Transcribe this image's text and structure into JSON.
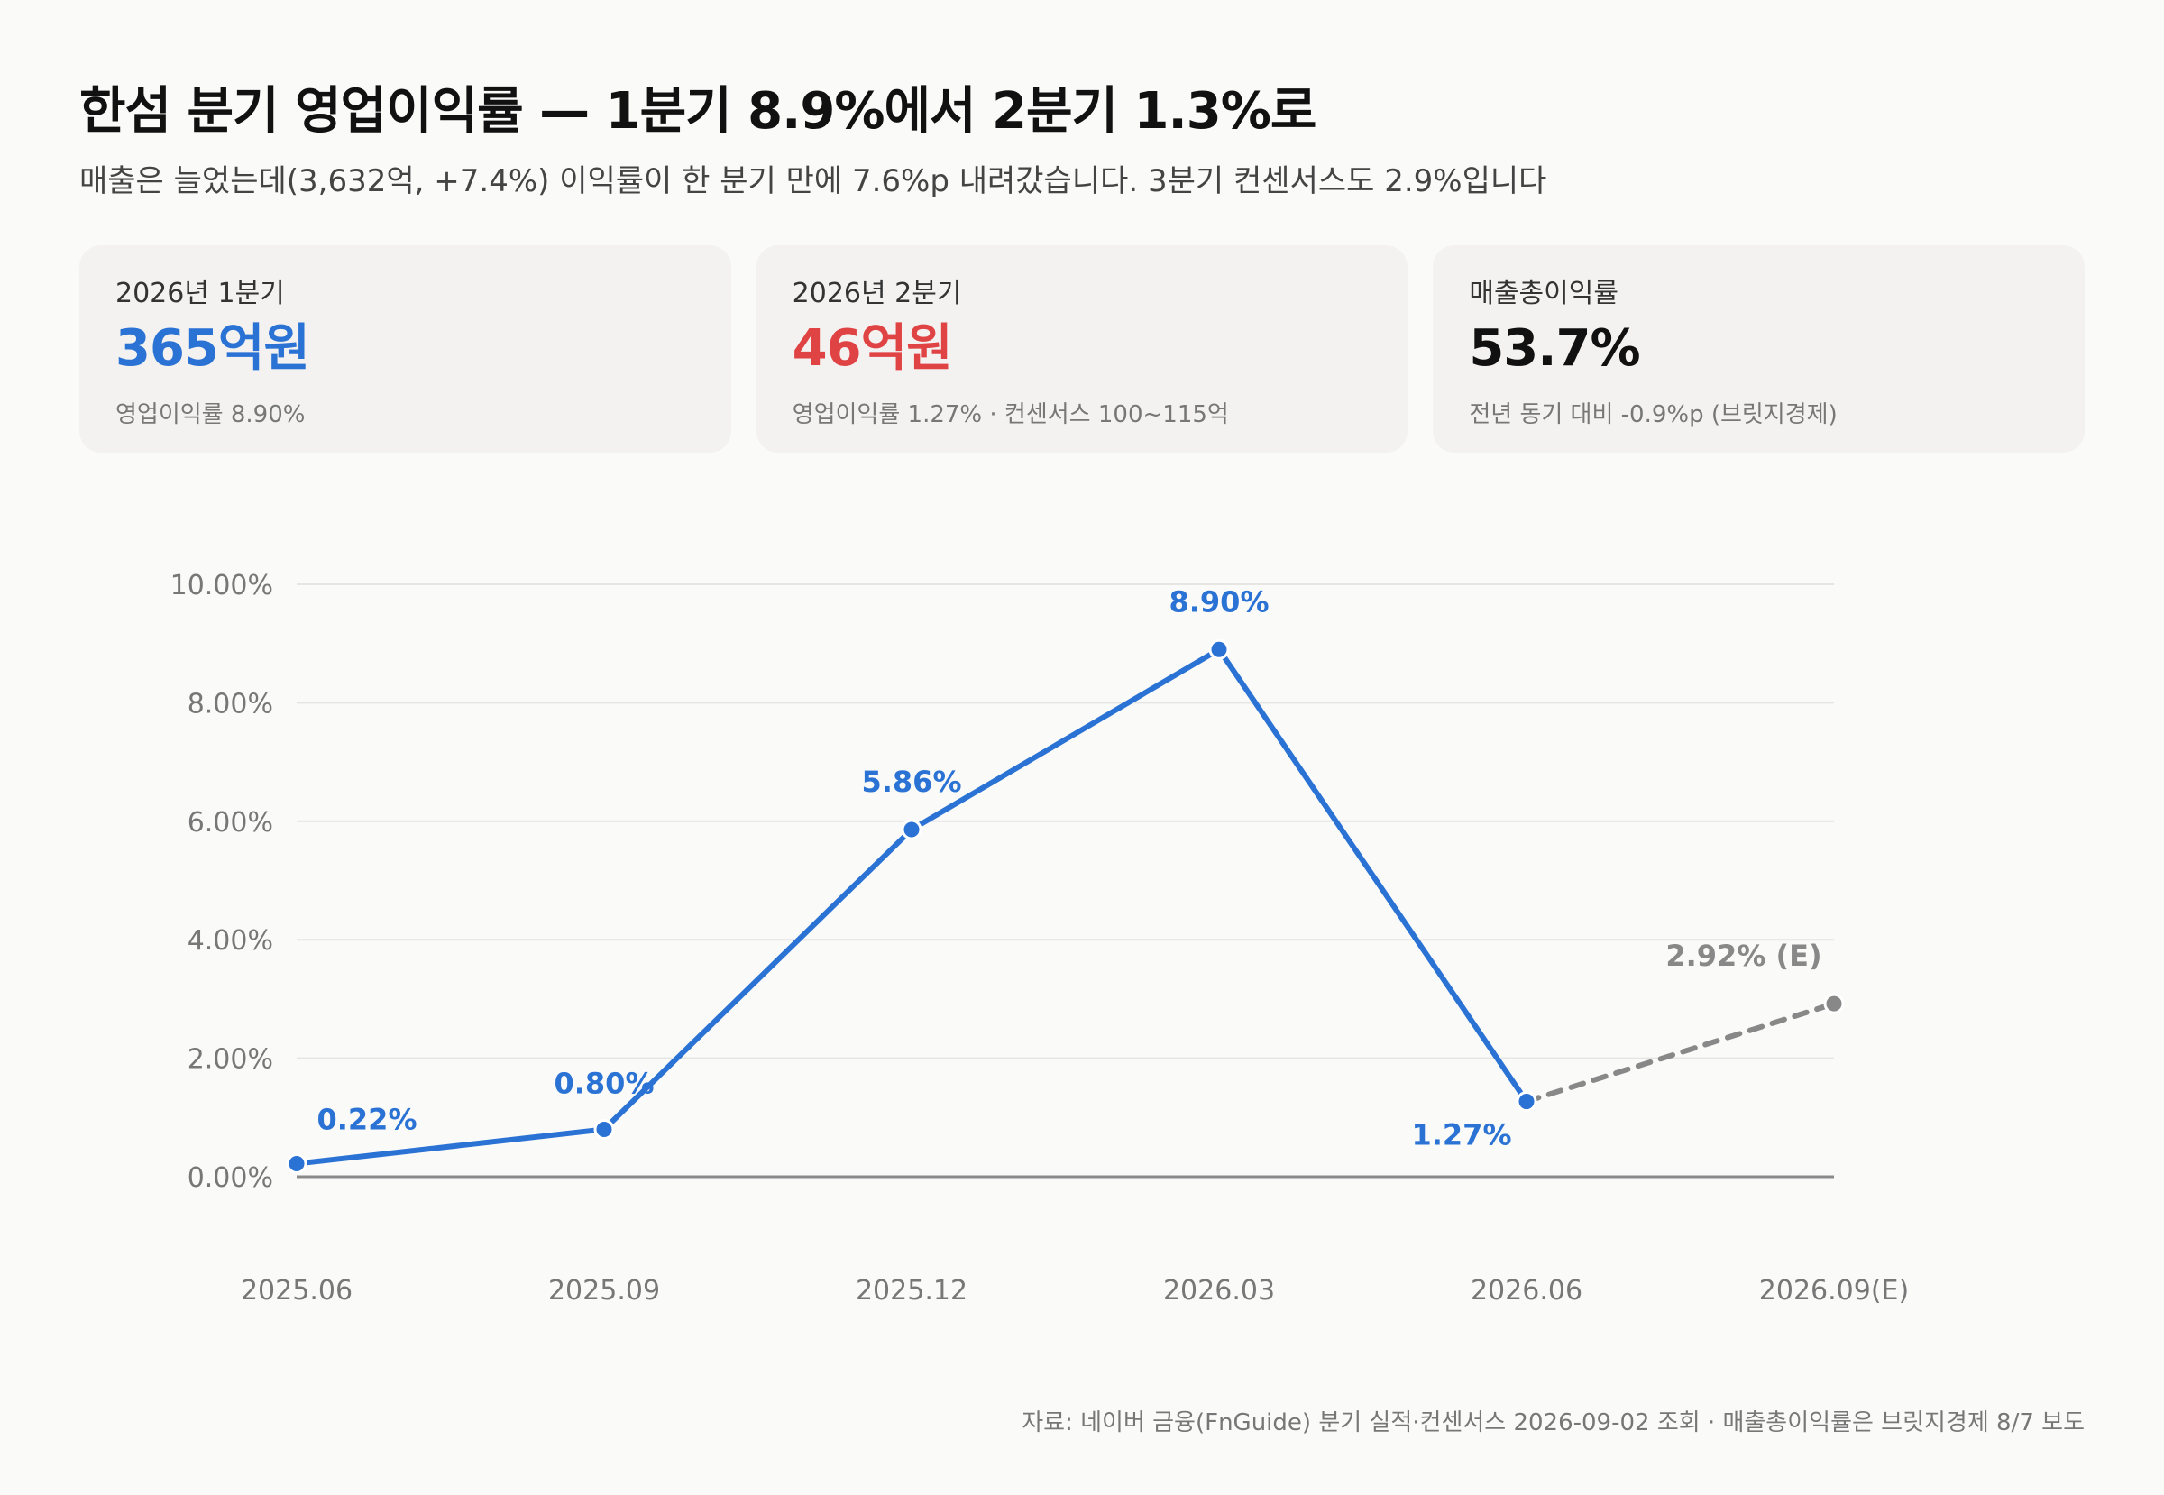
{
  "header": {
    "title": "한섬 분기 영업이익률 — 1분기 8.9%에서 2분기 1.3%로",
    "subtitle": "매출은 늘었는데(3,632억, +7.4%) 이익률이 한 분기 만에 7.6%p 내려갔습니다. 3분기 컨센서스도 2.9%입니다"
  },
  "cards": [
    {
      "label": "2026년 1분기",
      "value": "365억원",
      "note": "영업이익률 8.90%",
      "color": "#2a72d4"
    },
    {
      "label": "2026년 2분기",
      "value": "46억원",
      "note": "영업이익률 1.27% · 컨센서스 100~115억",
      "color": "#e04343"
    },
    {
      "label": "매출총이익률",
      "value": "53.7%",
      "note": "전년 동기 대비 -0.9%p (브릿지경제)",
      "color": "#111111"
    }
  ],
  "chart_data": {
    "type": "line",
    "categories": [
      "2025.06",
      "2025.09",
      "2025.12",
      "2026.03",
      "2026.06",
      "2026.09(E)"
    ],
    "series": [
      {
        "values": [
          0.22,
          0.8,
          5.86,
          8.9,
          1.27,
          null
        ],
        "color": "#2a72d4",
        "style": "solid"
      },
      {
        "values": [
          null,
          null,
          null,
          null,
          1.27,
          2.92
        ],
        "color": "#888888",
        "style": "dashed"
      }
    ],
    "data_labels": [
      "0.22%",
      "0.80%",
      "5.86%",
      "8.90%",
      "1.27%",
      "2.92% (E)"
    ],
    "y_ticks": [
      "0.00%",
      "2.00%",
      "4.00%",
      "6.00%",
      "8.00%",
      "10.00%"
    ],
    "ylim": [
      0,
      10
    ],
    "grid": true,
    "title": "",
    "xlabel": "",
    "ylabel": ""
  },
  "footer": {
    "source": "자료: 네이버 금융(FnGuide) 분기 실적·컨센서스 2026-09-02 조회 · 매출총이익률은 브릿지경제 8/7 보도"
  }
}
